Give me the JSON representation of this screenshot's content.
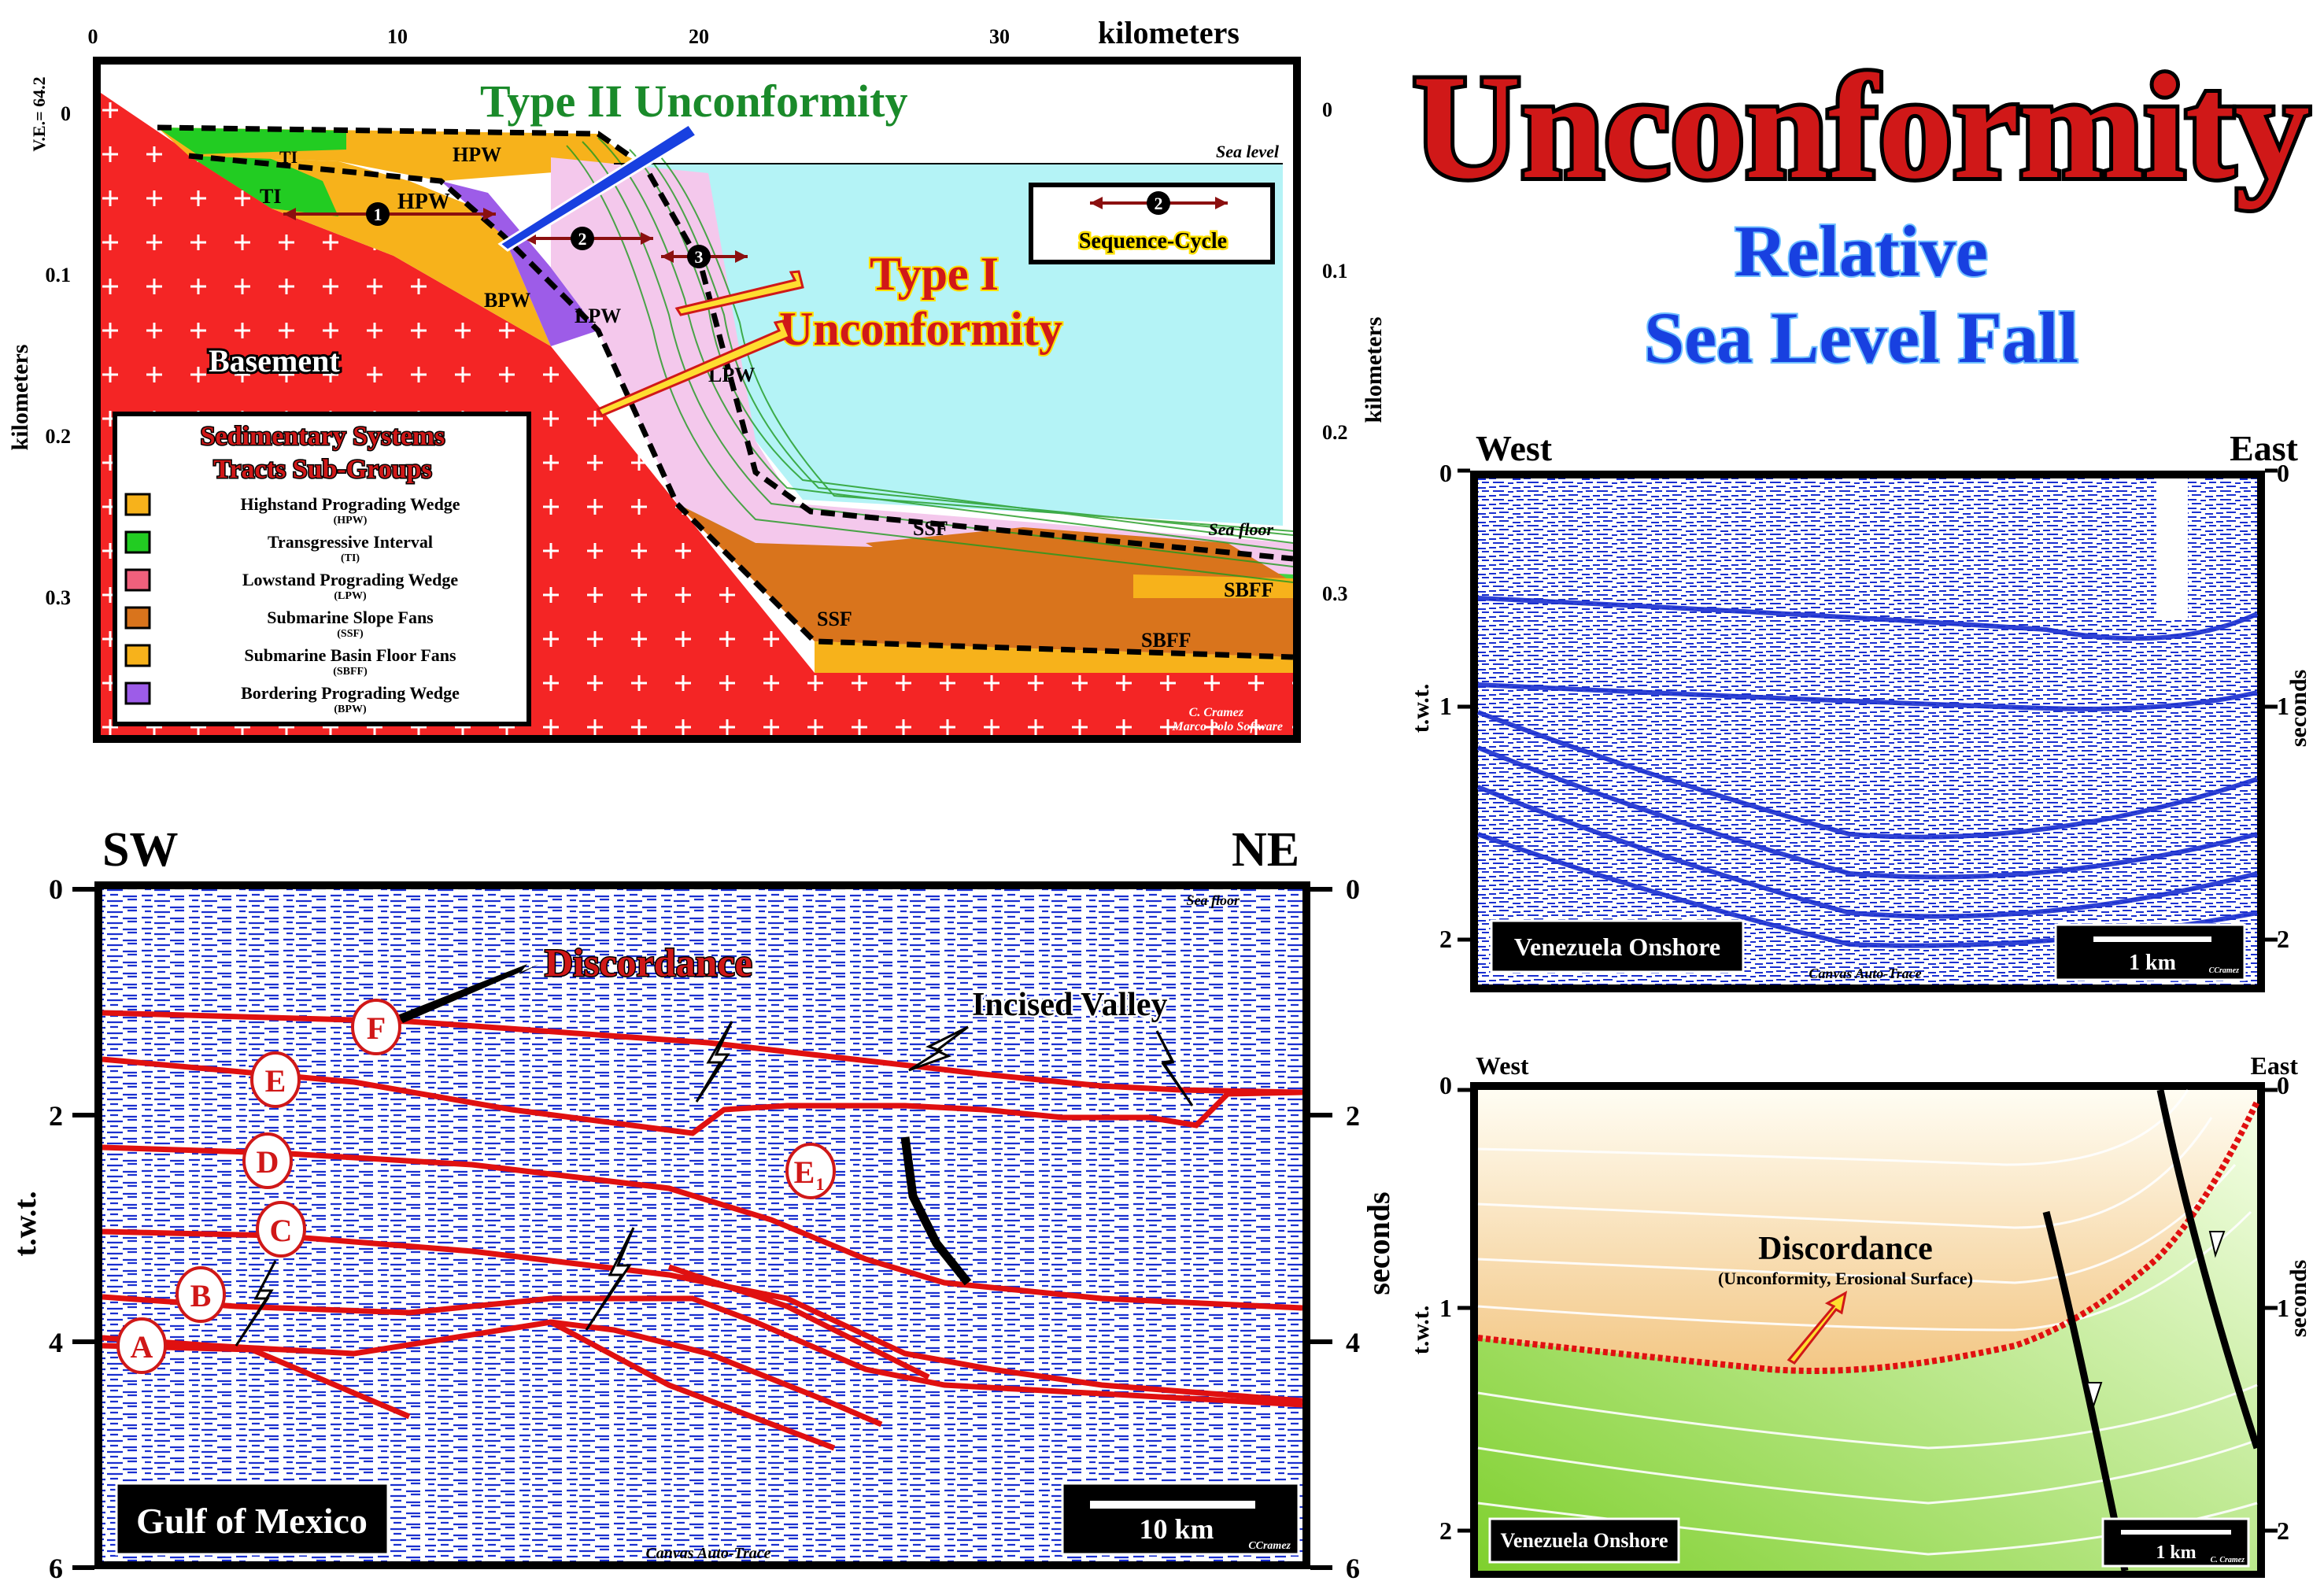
{
  "title": {
    "main": "Unconformity",
    "sub1": "Relative",
    "sub2": "Sea Level Fall"
  },
  "panel1": {
    "km_ticks": [
      "0",
      "10",
      "20",
      "30"
    ],
    "km_label": "kilometers",
    "ve": "V.E.= 64.2",
    "y_ticks": [
      "0",
      "0.1",
      "0.2",
      "0.3"
    ],
    "y_label": "kilometers",
    "type2": "Type II Unconformity",
    "type1_a": "Type I",
    "type1_b": "Unconformity",
    "sea_level": "Sea level",
    "sea_floor": "Sea floor",
    "basement": "Basement",
    "labels": {
      "ti": "TI",
      "hpw": "HPW",
      "bpw": "BPW",
      "lpw": "LPW",
      "ssf": "SSF",
      "sbff": "SBFF"
    },
    "markers": [
      "1",
      "2",
      "3"
    ],
    "seq_box": {
      "marker": "2",
      "label": "Sequence-Cycle"
    },
    "legend": {
      "title1": "Sedimentary Systems",
      "title2": "Tracts Sub-Groups",
      "items": [
        {
          "name": "Highstand Prograding Wedge",
          "abbr": "(HPW)",
          "color": "#f7b21b"
        },
        {
          "name": "Transgressive Interval",
          "abbr": "(TI)",
          "color": "#22cc22"
        },
        {
          "name": "Lowstand Prograding Wedge",
          "abbr": "(LPW)",
          "color": "#f0607c"
        },
        {
          "name": "Submarine Slope Fans",
          "abbr": "(SSF)",
          "color": "#d9741c"
        },
        {
          "name": "Submarine Basin Floor Fans",
          "abbr": "(SBFF)",
          "color": "#f7b21b"
        },
        {
          "name": "Bordering Prograding Wedge",
          "abbr": "(BPW)",
          "color": "#9d5ce8"
        }
      ]
    },
    "credit1": "C. Cramez",
    "credit2": "Marco Polo Software"
  },
  "panel2": {
    "left": "SW",
    "right": "NE",
    "y_ticks": [
      "0",
      "2",
      "4",
      "6"
    ],
    "y_label": "t.w.t.",
    "y_label_right": "seconds",
    "sea_floor": "Sea floor",
    "discordance": "Discordance",
    "incised": "Incised Valley",
    "horizons": [
      "F",
      "E",
      "D",
      "C",
      "B",
      "A"
    ],
    "e1": "E",
    "e1_sub": "1",
    "location": "Gulf of Mexico",
    "scale": "10 km",
    "credit": "CCramez",
    "trace": "Canvas Auto-Trace"
  },
  "panel3": {
    "left": "West",
    "right": "East",
    "y_ticks": [
      "0",
      "1",
      "2"
    ],
    "y_label": "t.w.t.",
    "y_label_right": "seconds",
    "location": "Venezuela Onshore",
    "scale": "1 km",
    "credit": "CCramez",
    "trace": "Canvas Auto-Trace"
  },
  "panel4": {
    "left": "West",
    "right": "East",
    "y_ticks": [
      "0",
      "1",
      "2"
    ],
    "y_label": "t.w.t.",
    "y_label_right": "seconds",
    "disc": "Discordance",
    "disc_sub": "(Unconformity, Erosional Surface)",
    "location": "Venezuela Onshore",
    "scale": "1 km",
    "credit": "C. Cramez"
  }
}
